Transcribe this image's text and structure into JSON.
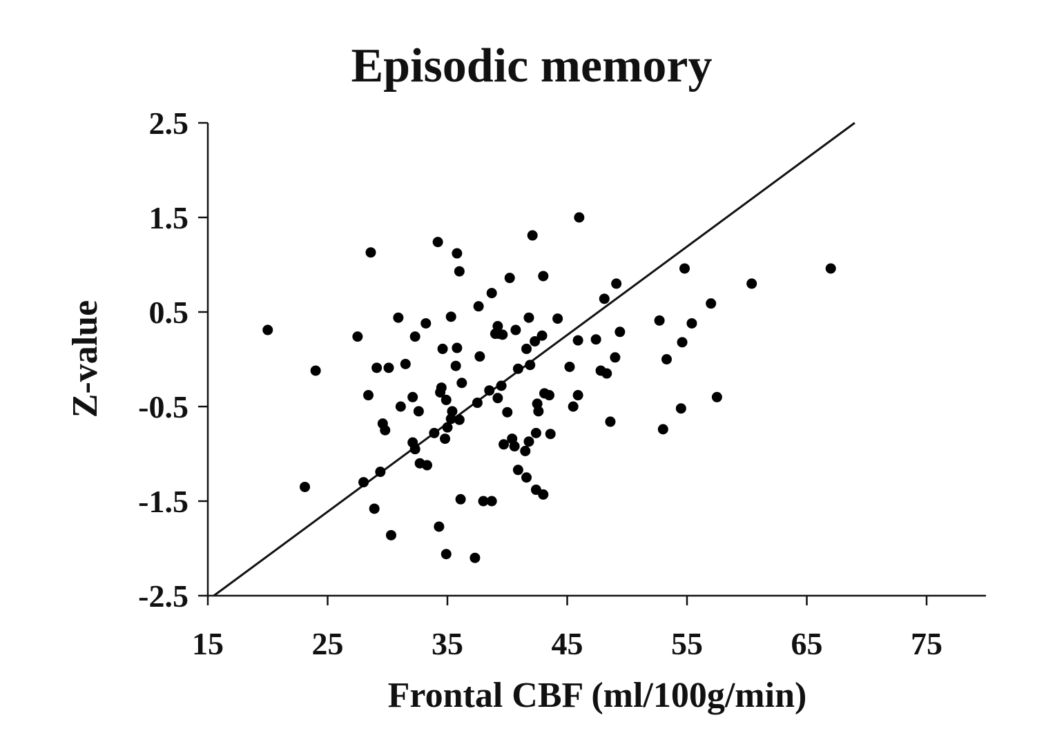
{
  "chart_data": {
    "type": "scatter",
    "title": "Episodic memory",
    "xlabel": "Frontal CBF (ml/100g/min)",
    "ylabel": "Z-value",
    "xlim": [
      15,
      80
    ],
    "ylim": [
      -2.5,
      2.5
    ],
    "xticks": [
      15,
      25,
      35,
      45,
      55,
      65,
      75
    ],
    "xtick_labels": [
      "15",
      "25",
      "35",
      "45",
      "55",
      "65",
      "75"
    ],
    "yticks": [
      2.5,
      1.5,
      0.5,
      -0.5,
      -1.5,
      -2.5
    ],
    "ytick_labels": [
      "2.5",
      "1.5",
      "0.5",
      "-0.5",
      "-1.5",
      "-2.5"
    ],
    "grid": false,
    "trendline": {
      "x": [
        15.5,
        69.0
      ],
      "y": [
        -2.5,
        2.5
      ]
    },
    "colors": {
      "points": "#000000",
      "axes": "#111111"
    },
    "points": [
      {
        "x": 20.0,
        "y": 0.31
      },
      {
        "x": 23.1,
        "y": -1.35
      },
      {
        "x": 24.0,
        "y": -0.12
      },
      {
        "x": 27.5,
        "y": 0.24
      },
      {
        "x": 28.0,
        "y": -1.3
      },
      {
        "x": 28.4,
        "y": -0.38
      },
      {
        "x": 28.6,
        "y": 1.13
      },
      {
        "x": 28.9,
        "y": -1.58
      },
      {
        "x": 29.1,
        "y": -0.09
      },
      {
        "x": 29.4,
        "y": -1.19
      },
      {
        "x": 29.6,
        "y": -0.68
      },
      {
        "x": 29.8,
        "y": -0.75
      },
      {
        "x": 30.1,
        "y": -0.09
      },
      {
        "x": 30.3,
        "y": -1.86
      },
      {
        "x": 30.9,
        "y": 0.44
      },
      {
        "x": 31.1,
        "y": -0.5
      },
      {
        "x": 31.5,
        "y": -0.05
      },
      {
        "x": 32.1,
        "y": -0.4
      },
      {
        "x": 32.1,
        "y": -0.88
      },
      {
        "x": 32.3,
        "y": -0.95
      },
      {
        "x": 32.3,
        "y": 0.24
      },
      {
        "x": 32.6,
        "y": -0.55
      },
      {
        "x": 32.7,
        "y": -1.1
      },
      {
        "x": 33.2,
        "y": 0.38
      },
      {
        "x": 33.3,
        "y": -1.12
      },
      {
        "x": 33.9,
        "y": -0.78
      },
      {
        "x": 34.2,
        "y": 1.24
      },
      {
        "x": 34.3,
        "y": -1.77
      },
      {
        "x": 34.4,
        "y": -0.35
      },
      {
        "x": 34.5,
        "y": -0.3
      },
      {
        "x": 34.6,
        "y": 0.11
      },
      {
        "x": 34.8,
        "y": -0.84
      },
      {
        "x": 34.9,
        "y": -2.06
      },
      {
        "x": 34.9,
        "y": -0.43
      },
      {
        "x": 35.0,
        "y": -0.72
      },
      {
        "x": 35.3,
        "y": -0.63
      },
      {
        "x": 35.3,
        "y": 0.45
      },
      {
        "x": 35.4,
        "y": -0.55
      },
      {
        "x": 35.7,
        "y": -0.07
      },
      {
        "x": 35.8,
        "y": 0.12
      },
      {
        "x": 35.8,
        "y": 1.12
      },
      {
        "x": 36.0,
        "y": -0.64
      },
      {
        "x": 36.0,
        "y": 0.93
      },
      {
        "x": 36.1,
        "y": -1.48
      },
      {
        "x": 36.2,
        "y": -0.25
      },
      {
        "x": 37.3,
        "y": -2.1
      },
      {
        "x": 37.5,
        "y": -0.46
      },
      {
        "x": 37.6,
        "y": 0.56
      },
      {
        "x": 37.7,
        "y": 0.03
      },
      {
        "x": 38.0,
        "y": -1.5
      },
      {
        "x": 38.5,
        "y": -0.33
      },
      {
        "x": 38.7,
        "y": -1.5
      },
      {
        "x": 38.7,
        "y": 0.7
      },
      {
        "x": 39.0,
        "y": 0.27
      },
      {
        "x": 39.2,
        "y": -0.41
      },
      {
        "x": 39.2,
        "y": 0.35
      },
      {
        "x": 39.3,
        "y": 0.27
      },
      {
        "x": 39.5,
        "y": -0.28
      },
      {
        "x": 39.6,
        "y": 0.26
      },
      {
        "x": 39.7,
        "y": -0.9
      },
      {
        "x": 40.0,
        "y": -0.56
      },
      {
        "x": 40.2,
        "y": 0.86
      },
      {
        "x": 40.4,
        "y": -0.84
      },
      {
        "x": 40.6,
        "y": -0.92
      },
      {
        "x": 40.7,
        "y": 0.31
      },
      {
        "x": 40.9,
        "y": -0.1
      },
      {
        "x": 40.9,
        "y": -1.17
      },
      {
        "x": 41.5,
        "y": -0.97
      },
      {
        "x": 41.6,
        "y": 0.11
      },
      {
        "x": 41.6,
        "y": -1.25
      },
      {
        "x": 41.8,
        "y": -0.87
      },
      {
        "x": 41.8,
        "y": 0.44
      },
      {
        "x": 41.9,
        "y": -0.06
      },
      {
        "x": 42.1,
        "y": 1.31
      },
      {
        "x": 42.3,
        "y": 0.19
      },
      {
        "x": 42.4,
        "y": -0.78
      },
      {
        "x": 42.4,
        "y": -1.38
      },
      {
        "x": 42.5,
        "y": -0.47
      },
      {
        "x": 42.6,
        "y": -0.55
      },
      {
        "x": 42.9,
        "y": 0.25
      },
      {
        "x": 43.0,
        "y": -1.43
      },
      {
        "x": 43.0,
        "y": 0.88
      },
      {
        "x": 43.1,
        "y": -0.36
      },
      {
        "x": 43.5,
        "y": -0.38
      },
      {
        "x": 43.6,
        "y": -0.79
      },
      {
        "x": 44.2,
        "y": 0.43
      },
      {
        "x": 45.2,
        "y": -0.08
      },
      {
        "x": 45.5,
        "y": -0.5
      },
      {
        "x": 45.9,
        "y": 0.2
      },
      {
        "x": 45.9,
        "y": -0.38
      },
      {
        "x": 46.0,
        "y": 1.5
      },
      {
        "x": 47.4,
        "y": 0.21
      },
      {
        "x": 47.8,
        "y": -0.12
      },
      {
        "x": 48.1,
        "y": 0.64
      },
      {
        "x": 48.3,
        "y": -0.15
      },
      {
        "x": 48.6,
        "y": -0.66
      },
      {
        "x": 49.0,
        "y": 0.02
      },
      {
        "x": 49.1,
        "y": 0.8
      },
      {
        "x": 49.4,
        "y": 0.29
      },
      {
        "x": 52.7,
        "y": 0.41
      },
      {
        "x": 53.0,
        "y": -0.74
      },
      {
        "x": 53.3,
        "y": 0.0
      },
      {
        "x": 54.5,
        "y": -0.52
      },
      {
        "x": 54.6,
        "y": 0.18
      },
      {
        "x": 54.8,
        "y": 0.96
      },
      {
        "x": 55.4,
        "y": 0.38
      },
      {
        "x": 57.0,
        "y": 0.59
      },
      {
        "x": 57.5,
        "y": -0.4
      },
      {
        "x": 60.4,
        "y": 0.8
      },
      {
        "x": 67.0,
        "y": 0.96
      }
    ]
  }
}
